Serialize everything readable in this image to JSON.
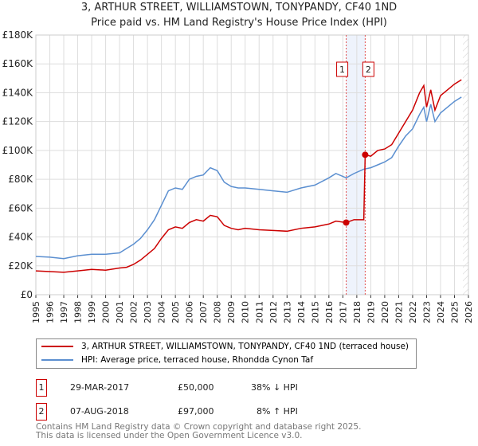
{
  "title": "3, ARTHUR STREET, WILLIAMSTOWN, TONYPANDY, CF40 1ND",
  "subtitle": "Price paid vs. HM Land Registry's House Price Index (HPI)",
  "chart_data": {
    "type": "line",
    "ylim": [
      0,
      180000
    ],
    "xlim": [
      1995,
      2026
    ],
    "yticks": [
      "£0",
      "£20K",
      "£40K",
      "£60K",
      "£80K",
      "£100K",
      "£120K",
      "£140K",
      "£160K",
      "£180K"
    ],
    "xticks": [
      "1995",
      "1996",
      "1997",
      "1998",
      "1999",
      "2000",
      "2001",
      "2002",
      "2003",
      "2004",
      "2005",
      "2006",
      "2007",
      "2008",
      "2009",
      "2010",
      "2011",
      "2012",
      "2013",
      "2014",
      "2015",
      "2016",
      "2017",
      "2018",
      "2019",
      "2020",
      "2021",
      "2022",
      "2023",
      "2024",
      "2025",
      "2026"
    ],
    "series": [
      {
        "name": "3, ARTHUR STREET, WILLIAMSTOWN, TONYPANDY, CF40 1ND (terraced house)",
        "color": "#cc0000",
        "x": [
          1995,
          1996,
          1997,
          1998,
          1999,
          2000,
          2001,
          2001.5,
          2002,
          2002.5,
          2003,
          2003.5,
          2004,
          2004.5,
          2005,
          2005.5,
          2006,
          2006.5,
          2007,
          2007.5,
          2008,
          2008.5,
          2009,
          2009.5,
          2010,
          2011,
          2012,
          2013,
          2014,
          2015,
          2016,
          2016.5,
          2017.24,
          2017.8,
          2018.5,
          2018.6,
          2019,
          2019.5,
          2020,
          2020.5,
          2021,
          2021.5,
          2022,
          2022.5,
          2022.8,
          2023,
          2023.3,
          2023.6,
          2024,
          2024.5,
          2025,
          2025.5
        ],
        "y": [
          16500,
          16000,
          15500,
          16500,
          17500,
          17000,
          18500,
          19000,
          21000,
          24000,
          28000,
          32000,
          39000,
          45000,
          47000,
          46000,
          50000,
          52000,
          51000,
          55000,
          54000,
          48000,
          46000,
          45000,
          46000,
          45000,
          44500,
          44000,
          46000,
          47000,
          49000,
          51000,
          50000,
          52000,
          52000,
          97000,
          96000,
          100000,
          101000,
          104000,
          112000,
          120000,
          128000,
          140000,
          145000,
          130000,
          142000,
          128000,
          138000,
          142000,
          146000,
          149000
        ]
      },
      {
        "name": "HPI: Average price, terraced house, Rhondda Cynon Taf",
        "color": "#5b8fd0",
        "x": [
          1995,
          1996,
          1997,
          1998,
          1999,
          2000,
          2001,
          2001.5,
          2002,
          2002.5,
          2003,
          2003.5,
          2004,
          2004.5,
          2005,
          2005.5,
          2006,
          2006.5,
          2007,
          2007.5,
          2008,
          2008.5,
          2009,
          2009.5,
          2010,
          2011,
          2012,
          2013,
          2014,
          2015,
          2016,
          2016.5,
          2017.24,
          2017.8,
          2018.5,
          2019,
          2019.5,
          2020,
          2020.5,
          2021,
          2021.5,
          2022,
          2022.5,
          2022.8,
          2023,
          2023.3,
          2023.6,
          2024,
          2024.5,
          2025,
          2025.5
        ],
        "y": [
          26500,
          26000,
          25000,
          27000,
          28000,
          28000,
          29000,
          32000,
          35000,
          39000,
          45000,
          52000,
          62000,
          72000,
          74000,
          73000,
          80000,
          82000,
          83000,
          88000,
          86000,
          78000,
          75000,
          74000,
          74000,
          73000,
          72000,
          71000,
          74000,
          76000,
          81000,
          84000,
          81000,
          84000,
          87000,
          88000,
          90000,
          92000,
          95000,
          103000,
          110000,
          115000,
          125000,
          130000,
          120000,
          132000,
          120000,
          126000,
          130000,
          134000,
          137000
        ]
      }
    ],
    "sales": [
      {
        "label": "1",
        "x": 2017.24,
        "y": 50000
      },
      {
        "label": "2",
        "x": 2018.6,
        "y": 97000
      }
    ]
  },
  "legend": {
    "red": "3, ARTHUR STREET, WILLIAMSTOWN, TONYPANDY, CF40 1ND (terraced house)",
    "blue": "HPI: Average price, terraced house, Rhondda Cynon Taf"
  },
  "transactions": [
    {
      "num": "1",
      "date": "29-MAR-2017",
      "price": "£50,000",
      "hpi": "38% ↓ HPI"
    },
    {
      "num": "2",
      "date": "07-AUG-2018",
      "price": "£97,000",
      "hpi": "8% ↑ HPI"
    }
  ],
  "footer": [
    "Contains HM Land Registry data © Crown copyright and database right 2025.",
    "This data is licensed under the Open Government Licence v3.0."
  ]
}
